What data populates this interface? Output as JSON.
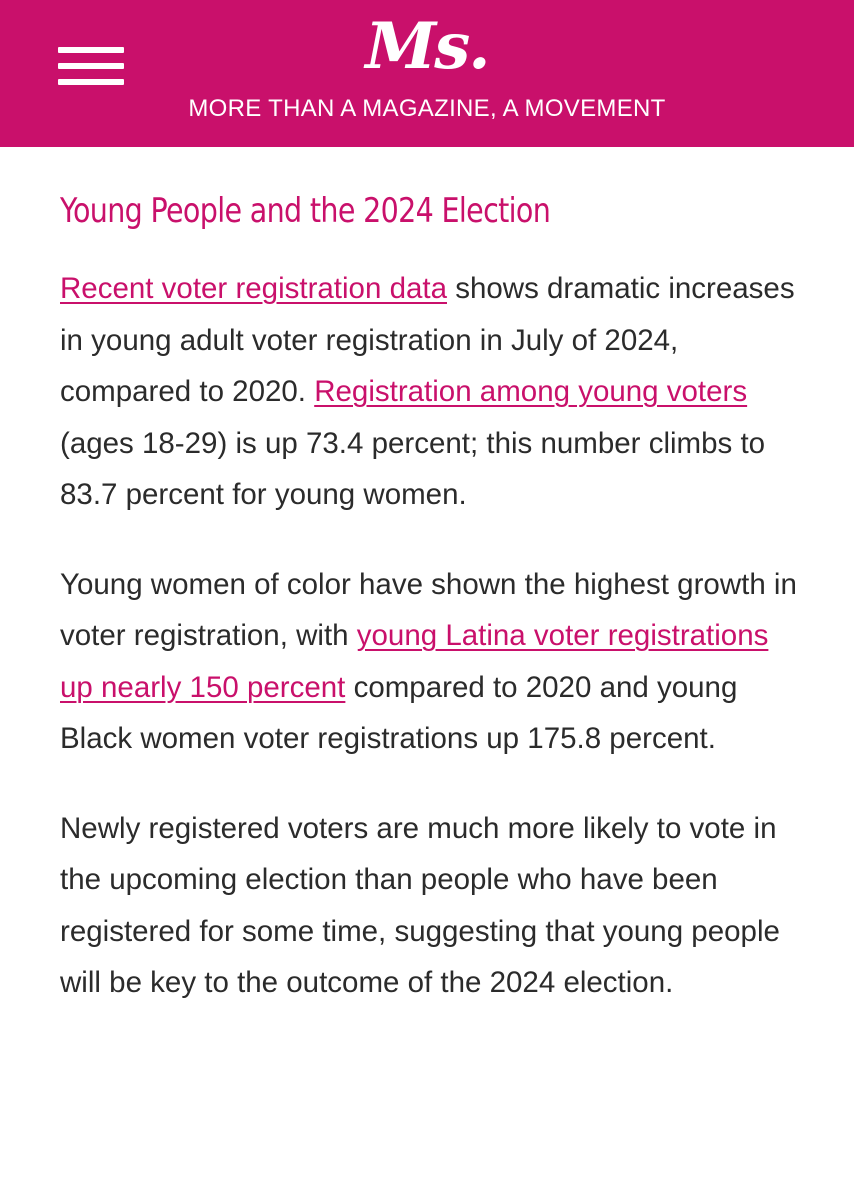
{
  "header": {
    "logo": "Ms.",
    "tagline": "MORE THAN A MAGAZINE, A MOVEMENT",
    "background_color": "#c9106b",
    "menu_icon": "hamburger-menu-icon"
  },
  "article": {
    "headline": "Young People and the 2024 Election",
    "accent_color": "#c9106b",
    "paragraph1": {
      "link1": "Recent voter registration data",
      "text1": " shows dramatic increases in young adult voter registration in July of 2024, compared to 2020. ",
      "link2": "Registration among young voters",
      "text2": " (ages 18-29) is up 73.4 percent; this number climbs to 83.7 percent for young women."
    },
    "paragraph2": {
      "text1": "Young women of color have shown the highest growth in voter registration, with ",
      "link1": "young Latina voter registrations up nearly 150 percent",
      "text2": " compared to 2020 and young Black women voter registrations up 175.8 percent."
    },
    "paragraph3": {
      "text1": "Newly registered voters are much more likely to vote in the upcoming election than people who have been registered for some time, suggesting that young people will be key to the outcome of the 2024 election."
    }
  }
}
